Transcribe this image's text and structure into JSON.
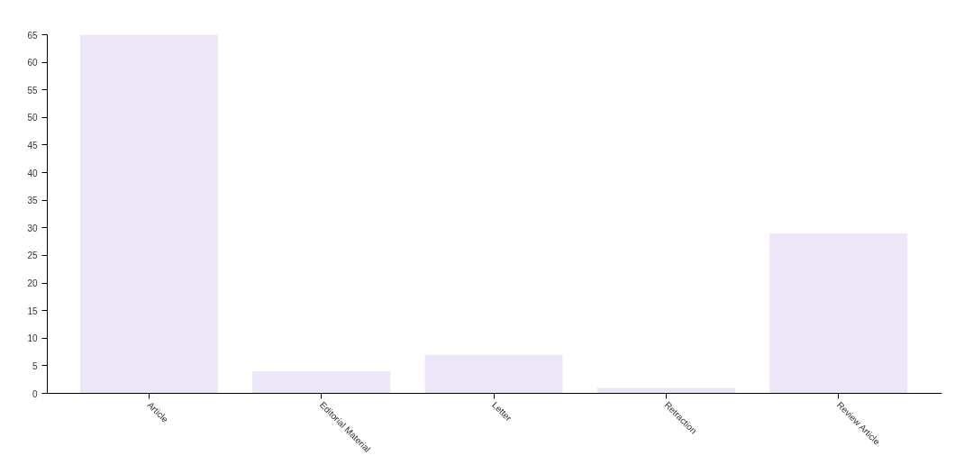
{
  "chart_data": {
    "type": "bar",
    "categories": [
      "Article",
      "Editorial Material",
      "Letter",
      "Retraction",
      "Review Article"
    ],
    "values": [
      65,
      4,
      7,
      1,
      29
    ],
    "color": "#ece6f6",
    "ylim": [
      0,
      65
    ],
    "yticks": [
      0,
      5,
      10,
      15,
      20,
      25,
      30,
      35,
      40,
      45,
      50,
      55,
      60,
      65
    ],
    "grid": false
  }
}
